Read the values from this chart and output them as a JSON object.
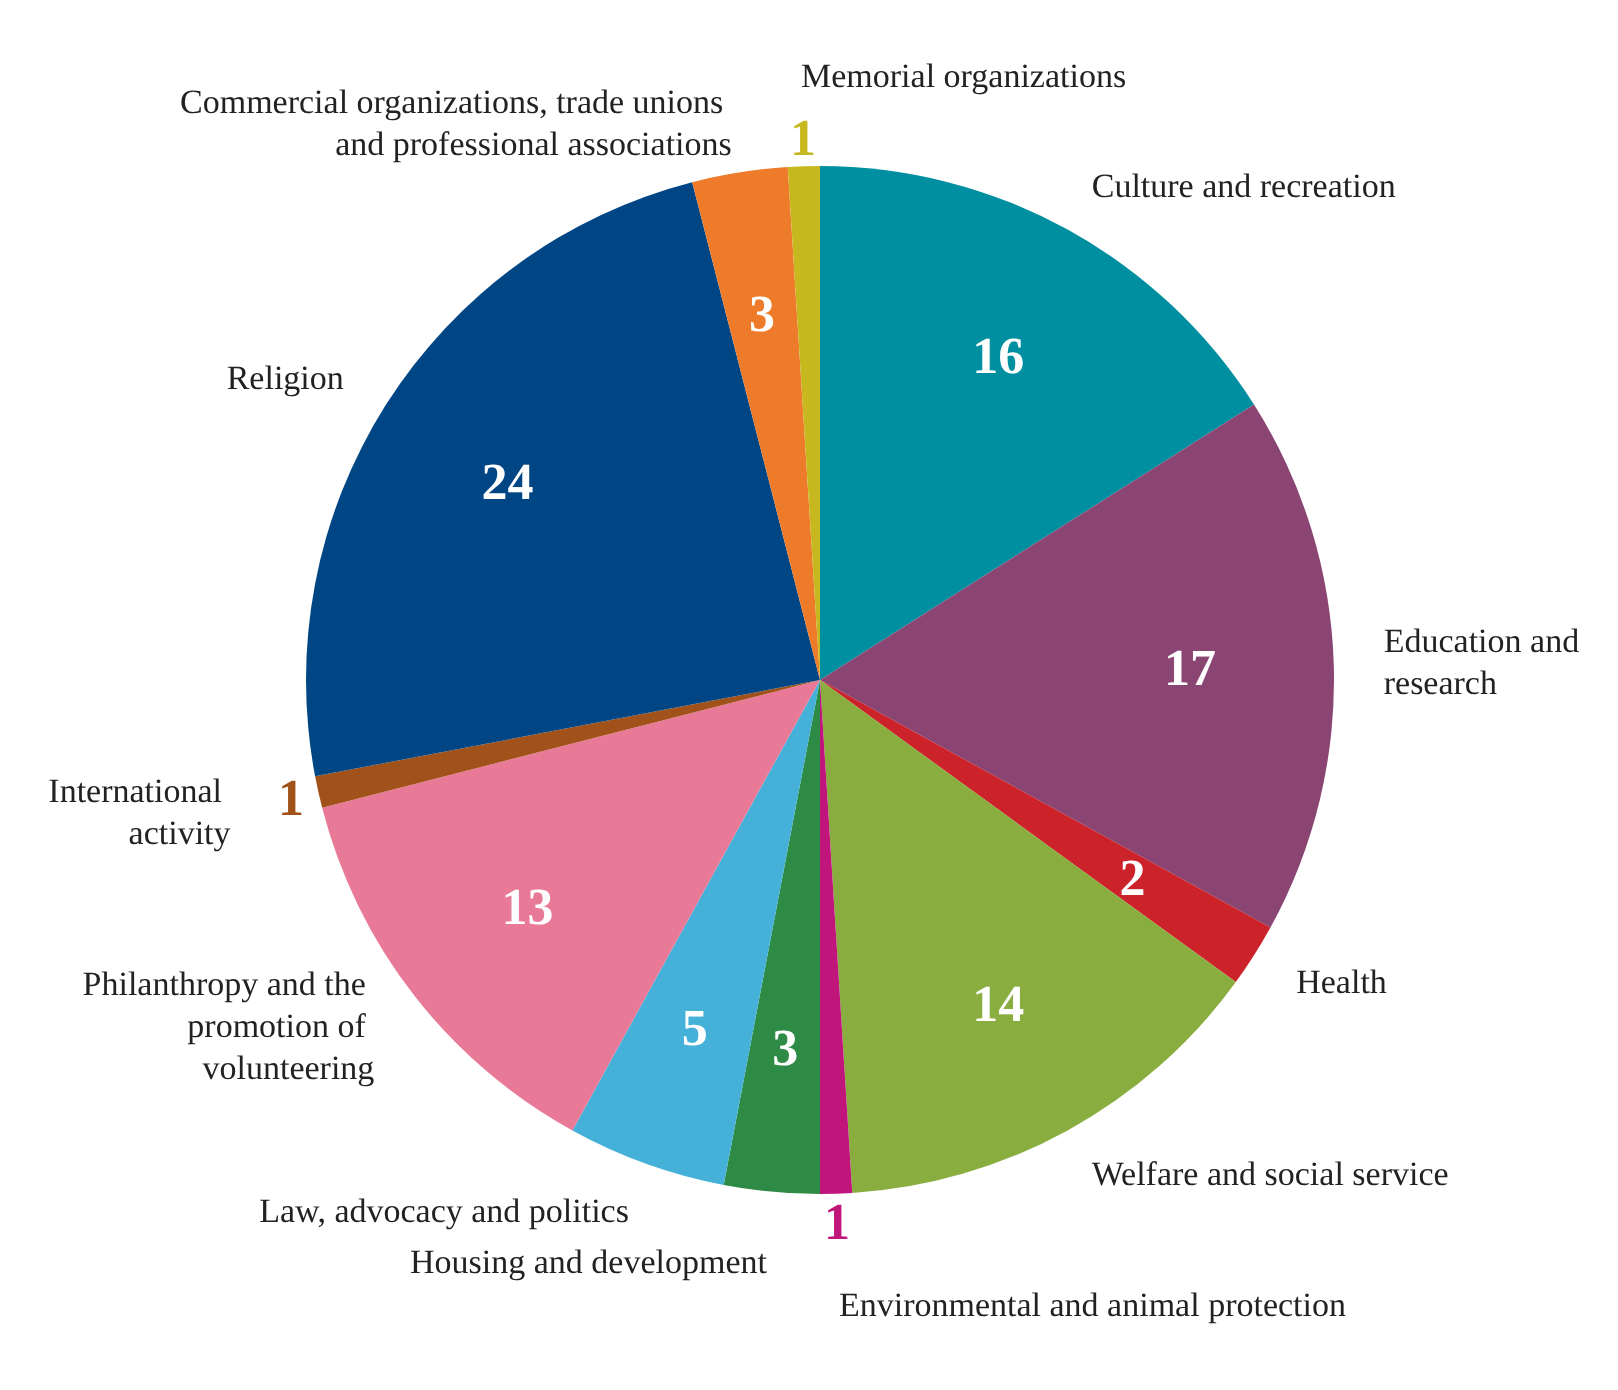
{
  "chart_data": {
    "type": "pie",
    "categories": [
      "Culture and recreation",
      "Education and research",
      "Health",
      "Welfare and social service",
      "Environmental and animal protection",
      "Housing and development",
      "Law, advocacy and politics",
      "Philanthropy and the promotion of volunteering",
      "International activity",
      "Religion",
      "Commercial organizations, trade unions and professional associations",
      "Memorial organizations"
    ],
    "values": [
      16,
      17,
      2,
      14,
      1,
      3,
      5,
      13,
      1,
      24,
      3,
      1
    ],
    "colors": [
      "#008fa0",
      "#8b4573",
      "#cc2229",
      "#8aad3f",
      "#c0157a",
      "#2e8b45",
      "#45b0d8",
      "#e87a98",
      "#a0521a",
      "#004685",
      "#ee7b2a",
      "#c8b820"
    ],
    "data_labels": true,
    "legend": false
  }
}
